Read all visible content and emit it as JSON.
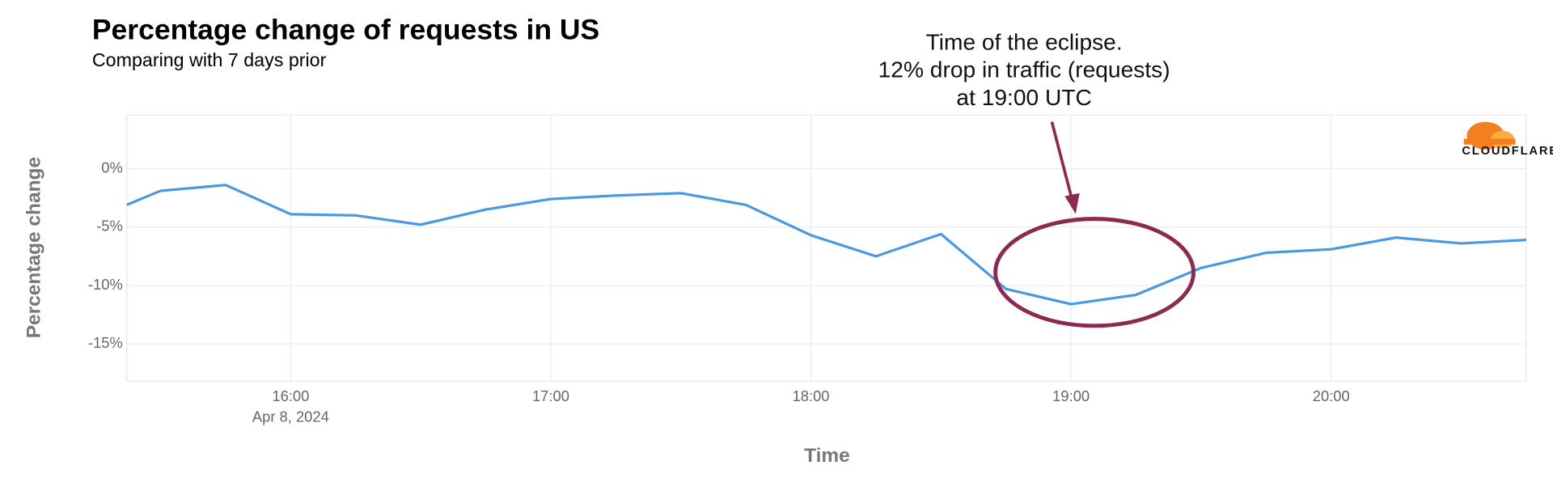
{
  "chart_data": {
    "type": "line",
    "title": "Percentage change of requests in US",
    "subtitle": "Comparing with 7 days prior",
    "y_label": "Percentage change",
    "x_label": "Time",
    "x_date_label": "Apr 8, 2024",
    "annotation": [
      "Time of the eclipse.",
      "12% drop in traffic (requests)",
      "at 19:00 UTC"
    ],
    "logo_text": "CLOUDFLARE",
    "color": "#4a98e0",
    "grid": true,
    "x": [
      15.37,
      15.5,
      15.75,
      16,
      16.25,
      16.5,
      16.75,
      17,
      17.25,
      17.5,
      17.75,
      18,
      18.25,
      18.5,
      18.75,
      19,
      19.25,
      19.5,
      19.75,
      20,
      20.25,
      20.5,
      20.75
    ],
    "values": [
      -3.1,
      -1.9,
      -1.4,
      -3.9,
      -4.0,
      -4.8,
      -3.5,
      -2.6,
      -2.3,
      -2.1,
      -3.1,
      -5.7,
      -7.5,
      -5.6,
      -10.3,
      -11.6,
      -10.8,
      -8.5,
      -7.2,
      -6.9,
      -5.9,
      -6.4,
      -6.1
    ],
    "xlim": [
      15.37,
      20.75
    ],
    "xticks": [
      {
        "value": 16,
        "label": "16:00"
      },
      {
        "value": 17,
        "label": "17:00"
      },
      {
        "value": 18,
        "label": "18:00"
      },
      {
        "value": 19,
        "label": "19:00"
      },
      {
        "value": 20,
        "label": "20:00"
      }
    ],
    "ylim": [
      -18.2,
      4.6
    ],
    "yticks": [
      {
        "value": 0,
        "label": "0%"
      },
      {
        "value": -5,
        "label": "-5%"
      },
      {
        "value": -10,
        "label": "-10%"
      },
      {
        "value": -15,
        "label": "-15%"
      }
    ]
  }
}
